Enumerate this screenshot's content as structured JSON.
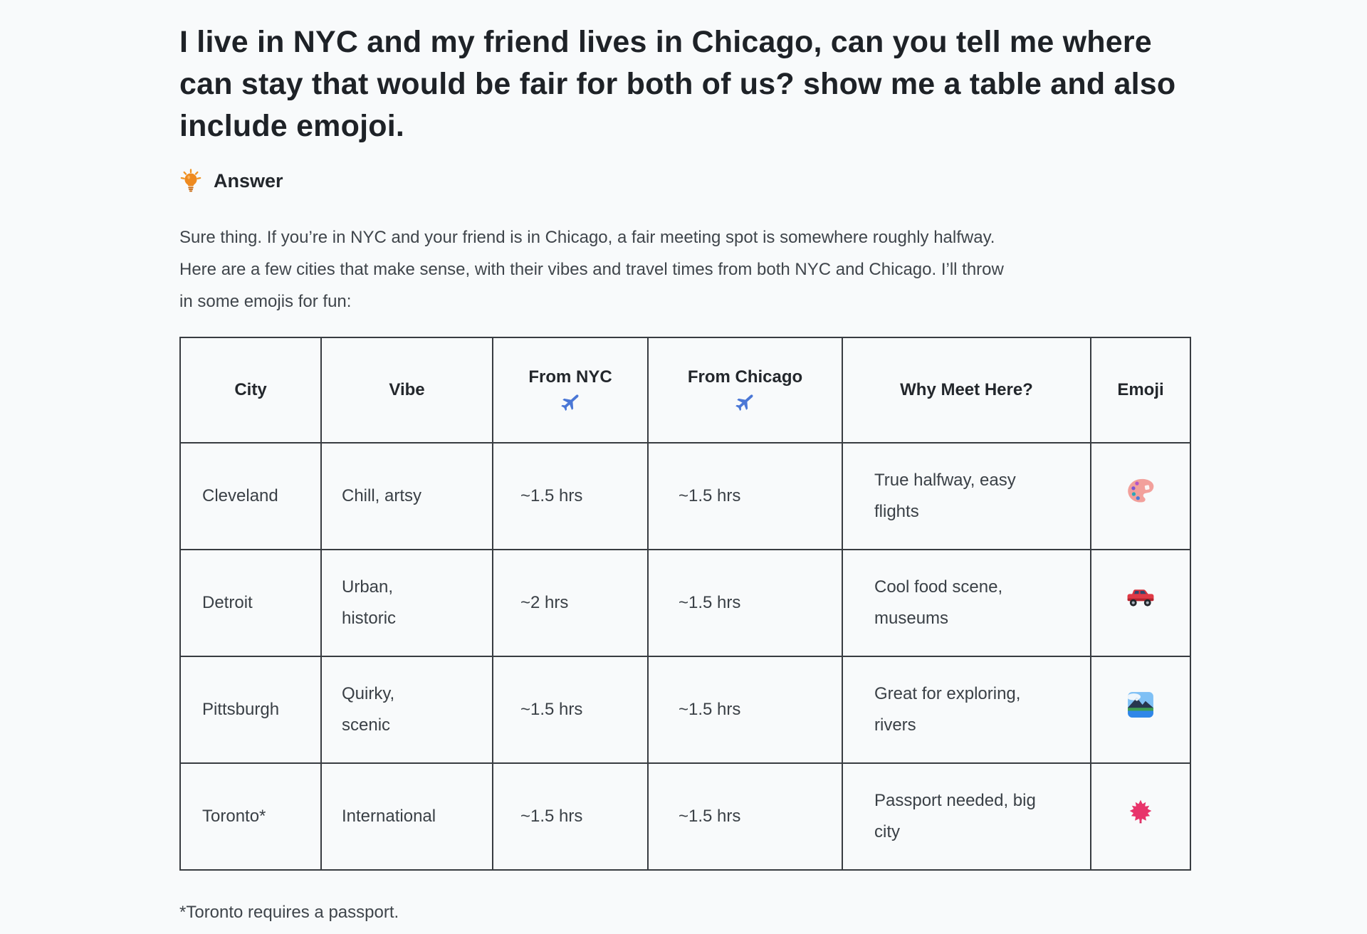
{
  "page": {
    "background": "#f8fafb",
    "question": "I live in NYC and my friend lives in Chicago, can you tell me where\ncan stay that would be fair for both of us? show me a table and also\ninclude emojoi.",
    "answer_label": "Answer",
    "answer_icon": {
      "name": "light-bulb-icon",
      "char": "💡",
      "color": "#ee8a1f"
    },
    "intro": "Sure thing. If you’re in NYC and your friend is in Chicago, a fair meeting spot is somewhere roughly halfway.\nHere are a few cities that make sense, with their vibes and travel times from both NYC and Chicago. I’ll throw\nin some emojis for fun:",
    "footnote": "*Toronto requires a passport."
  },
  "colors": {
    "title_text": "#1e2227",
    "body_text": "#3f454b",
    "table_border": "#383c41",
    "answer_bulb": "#ee8a1f",
    "airplane_blue": "#4a77d6",
    "palette_pink": "#f2a09b",
    "car_red": "#dd3a46",
    "leaf_pink": "#e8346b"
  },
  "table": {
    "headers": {
      "city": "City",
      "vibe": "Vibe",
      "from_nyc": "From NYC",
      "from_chicago": "From Chicago",
      "why": "Why Meet Here?",
      "emoji": "Emoji",
      "airplane_icon": {
        "name": "airplane-icon",
        "char": "✈️"
      }
    },
    "rows": [
      {
        "city": "Cleveland",
        "vibe": "Chill, artsy",
        "from_nyc": "~1.5 hrs",
        "from_chicago": "~1.5 hrs",
        "why": "True halfway, easy\nflights",
        "emoji_name": "artist-palette",
        "emoji_char": "🎨"
      },
      {
        "city": "Detroit",
        "vibe": "Urban,\nhistoric",
        "from_nyc": "~2 hrs",
        "from_chicago": "~1.5 hrs",
        "why": "Cool food scene,\nmuseums",
        "emoji_name": "automobile",
        "emoji_char": "🚗"
      },
      {
        "city": "Pittsburgh",
        "vibe": "Quirky,\nscenic",
        "from_nyc": "~1.5 hrs",
        "from_chicago": "~1.5 hrs",
        "why": "Great for exploring,\nrivers",
        "emoji_name": "national-park",
        "emoji_char": "🏞️"
      },
      {
        "city": "Toronto*",
        "vibe": "International",
        "from_nyc": "~1.5 hrs",
        "from_chicago": "~1.5 hrs",
        "why": "Passport needed, big\ncity",
        "emoji_name": "maple-leaf",
        "emoji_char": "🍁"
      }
    ]
  }
}
